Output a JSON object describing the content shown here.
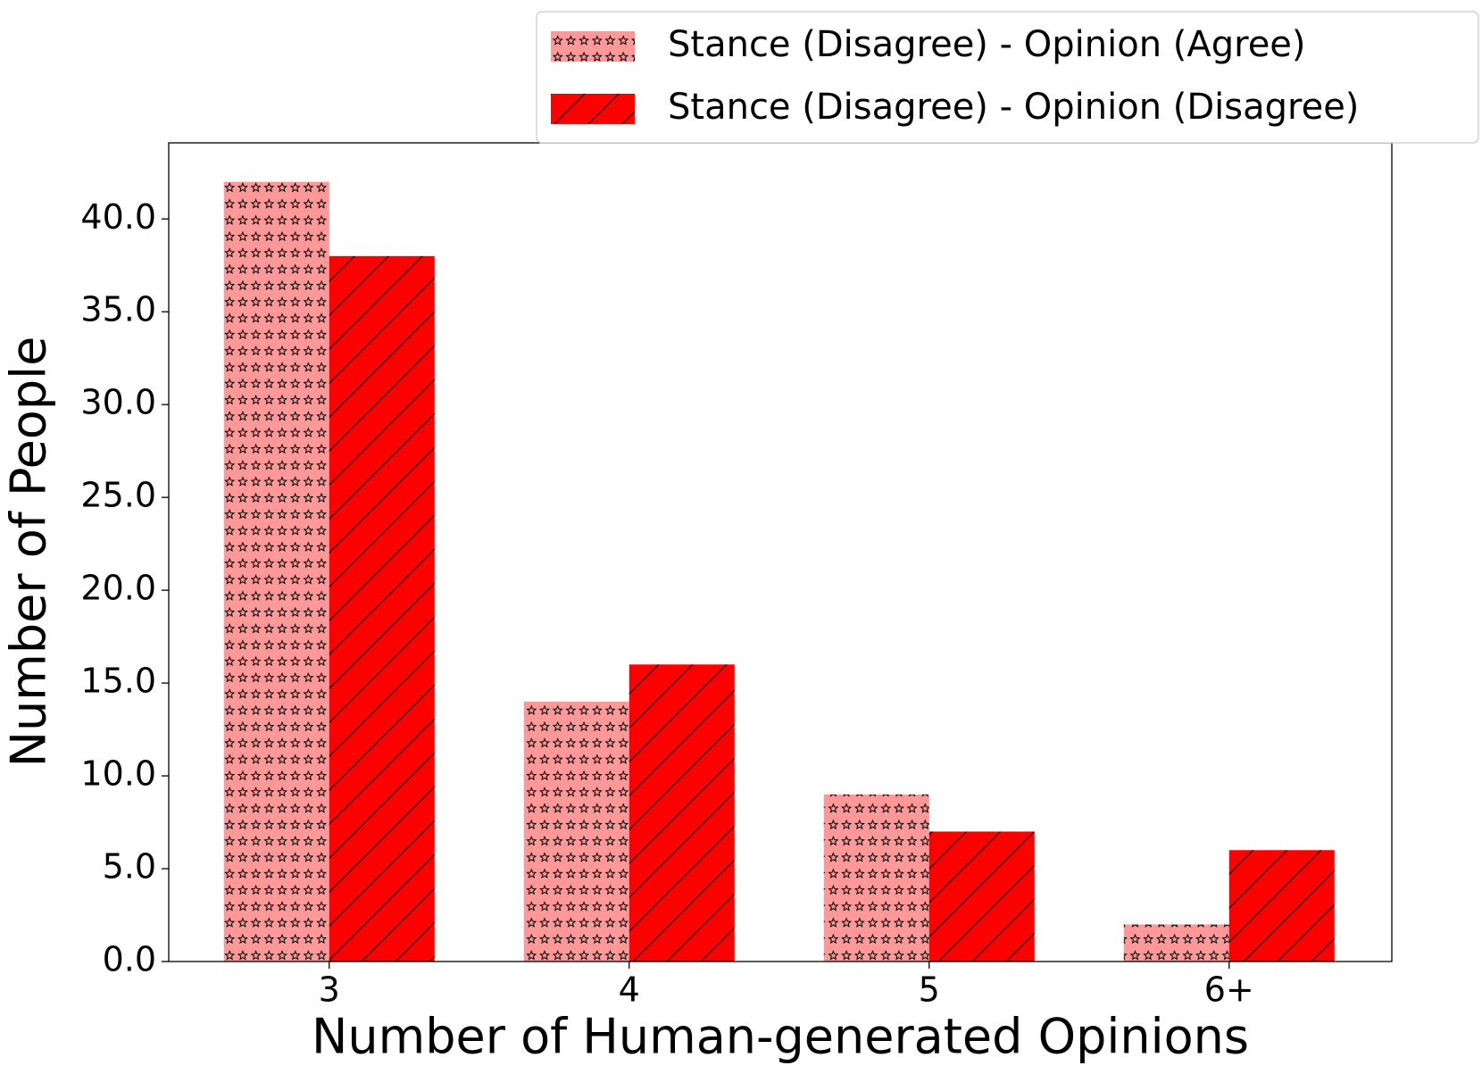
{
  "chart_data": {
    "type": "bar",
    "categories": [
      "3",
      "4",
      "5",
      "6+"
    ],
    "series": [
      {
        "name": "Stance (Disagree) - Opinion (Agree)",
        "color": "#ff9999",
        "hatch": "*",
        "values": [
          42,
          14,
          9,
          2
        ]
      },
      {
        "name": "Stance (Disagree) - Opinion (Disagree)",
        "color": "#ff0000",
        "hatch": "/",
        "values": [
          38,
          16,
          7,
          6
        ]
      }
    ],
    "xlabel": "Number of Human-generated Opinions",
    "ylabel": "Number of People",
    "ylim": [
      0,
      44.1
    ],
    "yticks": [
      {
        "value": 0,
        "label": "0.0"
      },
      {
        "value": 5,
        "label": "5.0"
      },
      {
        "value": 10,
        "label": "10.0"
      },
      {
        "value": 15,
        "label": "15.0"
      },
      {
        "value": 20,
        "label": "20.0"
      },
      {
        "value": 25,
        "label": "25.0"
      },
      {
        "value": 30,
        "label": "30.0"
      },
      {
        "value": 35,
        "label": "35.0"
      },
      {
        "value": 40,
        "label": "40.0"
      }
    ],
    "grid": false,
    "legend": "upper right"
  }
}
